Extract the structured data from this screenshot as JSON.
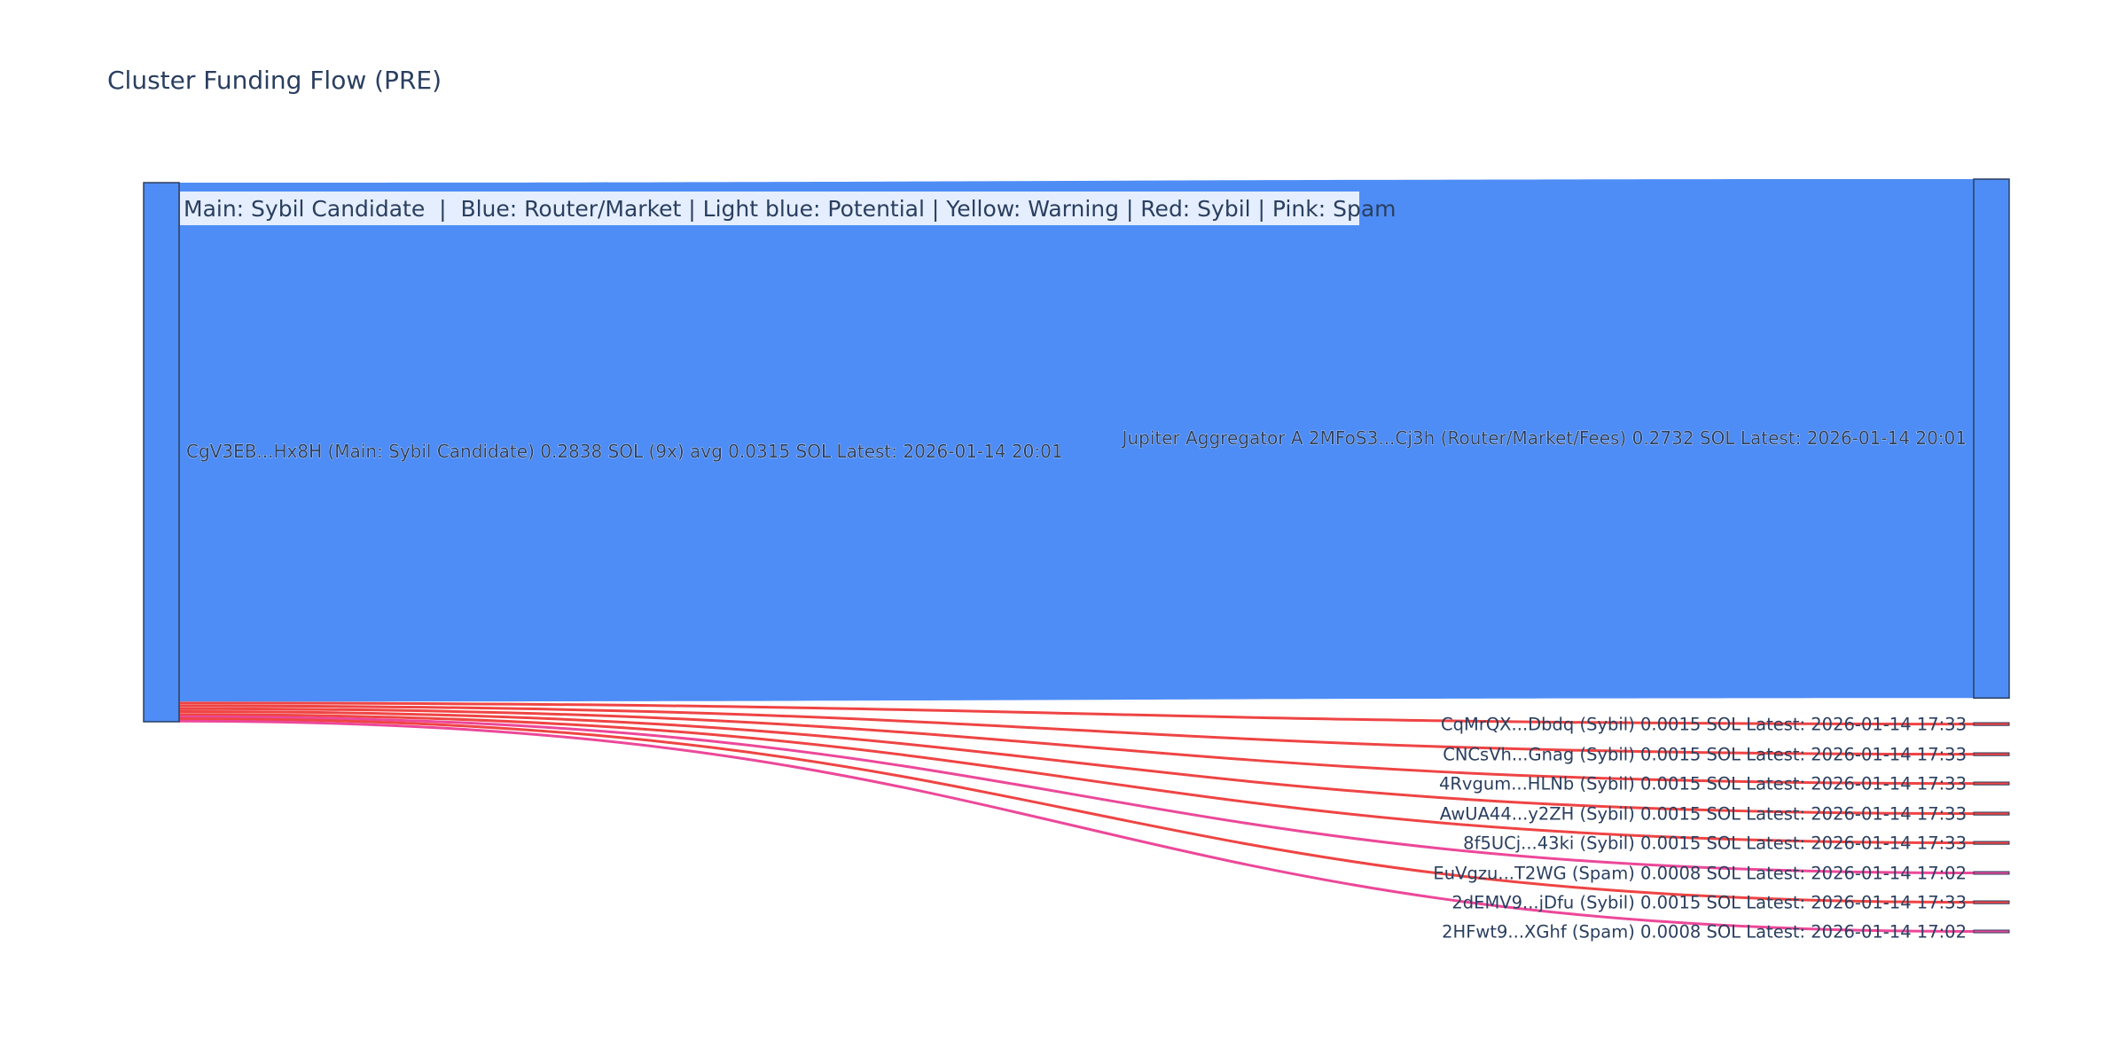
{
  "chart_data": {
    "type": "sankey",
    "title": "Cluster Funding Flow (PRE)",
    "legend_text": "Main: Sybil Candidate  |  Blue: Router/Market | Light blue: Potential | Yellow: Warning | Red: Sybil | Pink: Spam",
    "colors": {
      "main": "#4f8df6",
      "router": "#4f8df6",
      "sybil": "#ef4444",
      "spam": "#ec4899",
      "node_border": "#2a3f5f",
      "background": "#ffffff"
    },
    "nodes": [
      {
        "id": "source",
        "label": "CgV3EB...Hx8H (Main: Sybil Candidate) 0.2838 SOL (9x) avg 0.0315 SOL Latest: 2026-01-14 20:01",
        "value": 0.2838,
        "category": "main"
      },
      {
        "id": "t0",
        "label": "Jupiter Aggregator A 2MFoS3...Cj3h (Router/Market/Fees) 0.2732 SOL Latest: 2026-01-14 20:01",
        "value": 0.2732,
        "category": "router"
      },
      {
        "id": "t1",
        "label": "CqMrQX...Dbdq (Sybil) 0.0015 SOL Latest: 2026-01-14 17:33",
        "value": 0.0015,
        "category": "sybil"
      },
      {
        "id": "t2",
        "label": "CNCsVh...Gnag (Sybil) 0.0015 SOL Latest: 2026-01-14 17:33",
        "value": 0.0015,
        "category": "sybil"
      },
      {
        "id": "t3",
        "label": "4Rvgum...HLNb (Sybil) 0.0015 SOL Latest: 2026-01-14 17:33",
        "value": 0.0015,
        "category": "sybil"
      },
      {
        "id": "t4",
        "label": "AwUA44...y2ZH (Sybil) 0.0015 SOL Latest: 2026-01-14 17:33",
        "value": 0.0015,
        "category": "sybil"
      },
      {
        "id": "t5",
        "label": "8f5UCj...43ki (Sybil) 0.0015 SOL Latest: 2026-01-14 17:33",
        "value": 0.0015,
        "category": "sybil"
      },
      {
        "id": "t6",
        "label": "EuVgzu...T2WG (Spam) 0.0008 SOL Latest: 2026-01-14 17:02",
        "value": 0.0008,
        "category": "spam"
      },
      {
        "id": "t7",
        "label": "2dEMV9...jDfu (Sybil) 0.0015 SOL Latest: 2026-01-14 17:33",
        "value": 0.0015,
        "category": "sybil"
      },
      {
        "id": "t8",
        "label": "2HFwt9...XGhf (Spam) 0.0008 SOL Latest: 2026-01-14 17:02",
        "value": 0.0008,
        "category": "spam"
      }
    ],
    "links": [
      {
        "source": "source",
        "target": "t0",
        "value": 0.2732
      },
      {
        "source": "source",
        "target": "t1",
        "value": 0.0015
      },
      {
        "source": "source",
        "target": "t2",
        "value": 0.0015
      },
      {
        "source": "source",
        "target": "t3",
        "value": 0.0015
      },
      {
        "source": "source",
        "target": "t4",
        "value": 0.0015
      },
      {
        "source": "source",
        "target": "t5",
        "value": 0.0015
      },
      {
        "source": "source",
        "target": "t6",
        "value": 0.0008
      },
      {
        "source": "source",
        "target": "t7",
        "value": 0.0015
      },
      {
        "source": "source",
        "target": "t8",
        "value": 0.0008
      }
    ]
  }
}
